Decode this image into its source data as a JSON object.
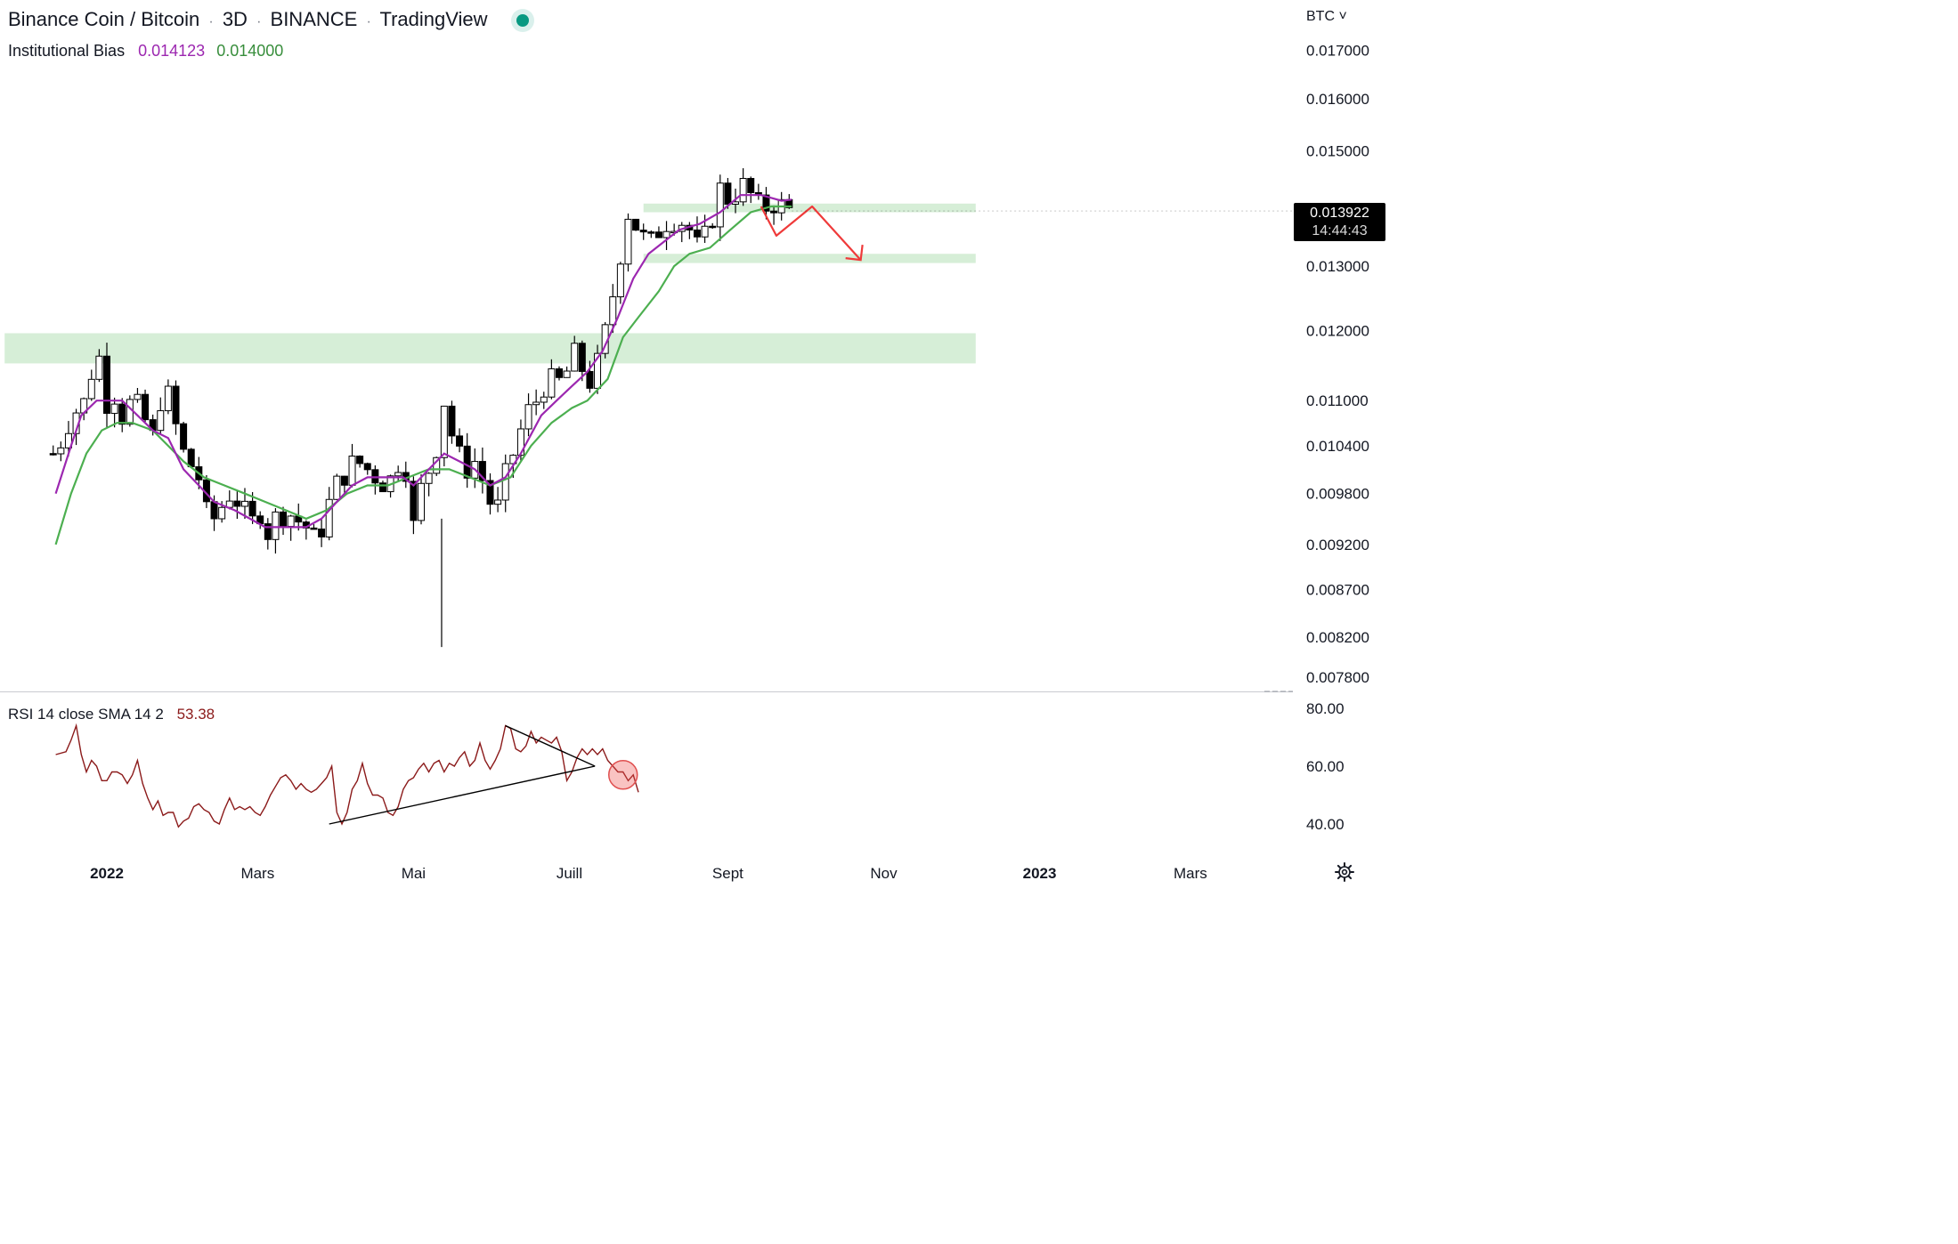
{
  "header": {
    "symbol": "Binance Coin / Bitcoin",
    "interval": "3D",
    "exchange": "BINANCE",
    "source": "TradingView",
    "status_icon": "live-dot-icon"
  },
  "indicator": {
    "name": "Institutional Bias",
    "value1": "0.014123",
    "value2": "0.014000",
    "color1": "#9c27b0",
    "color2": "#4caf50"
  },
  "rsi": {
    "label": "RSI 14 close SMA 14 2",
    "value": "53.38",
    "color": "#8b1a1a"
  },
  "currency": "BTC ˅",
  "last_price": {
    "price": "0.013922",
    "countdown": "14:44:43"
  },
  "settings_icon": "gear-icon",
  "colors": {
    "candle": "#000000",
    "zone": "#d6eed7",
    "arrow": "#ef3a3a",
    "rsi_line": "#8b1a1a",
    "trendline": "#000000"
  },
  "chart_data": [
    {
      "type": "candlestick",
      "scale": "log",
      "y_ticks": [
        "0.017000",
        "0.016000",
        "0.015000",
        "0.013000",
        "0.012000",
        "0.011000",
        "0.010400",
        "0.009800",
        "0.009200",
        "0.008700",
        "0.008200",
        "0.007800"
      ],
      "x_ticks": [
        "2022",
        "Mars",
        "Mai",
        "Juill",
        "Sept",
        "Nov",
        "2023",
        "Mars"
      ],
      "x_tick_day": [
        0,
        59,
        120,
        181,
        243,
        304,
        365,
        424
      ],
      "close_path": [
        [
          -20,
          0.0103
        ],
        [
          -14,
          0.0108
        ],
        [
          -8,
          0.011
        ],
        [
          -4,
          0.0118
        ],
        [
          0,
          0.011
        ],
        [
          2,
          0.0112
        ],
        [
          6,
          0.0108
        ],
        [
          10,
          0.011
        ],
        [
          14,
          0.0108
        ],
        [
          18,
          0.0105
        ],
        [
          22,
          0.0112
        ],
        [
          26,
          0.0109
        ],
        [
          28,
          0.0104
        ],
        [
          32,
          0.0102
        ],
        [
          36,
          0.01
        ],
        [
          40,
          0.0094
        ],
        [
          44,
          0.0096
        ],
        [
          48,
          0.0098
        ],
        [
          52,
          0.0097
        ],
        [
          56,
          0.0094
        ],
        [
          60,
          0.0096
        ],
        [
          62,
          0.0093
        ],
        [
          66,
          0.0095
        ],
        [
          70,
          0.0096
        ],
        [
          74,
          0.0095
        ],
        [
          78,
          0.0094
        ],
        [
          82,
          0.0092
        ],
        [
          86,
          0.0096
        ],
        [
          90,
          0.0099
        ],
        [
          94,
          0.0101
        ],
        [
          98,
          0.0102
        ],
        [
          102,
          0.0101
        ],
        [
          106,
          0.01
        ],
        [
          110,
          0.0099
        ],
        [
          114,
          0.0102
        ],
        [
          118,
          0.0101
        ],
        [
          120,
          0.0094
        ],
        [
          124,
          0.01
        ],
        [
          128,
          0.0102
        ],
        [
          132,
          0.011
        ],
        [
          136,
          0.0104
        ],
        [
          140,
          0.0101
        ],
        [
          144,
          0.0102
        ],
        [
          148,
          0.0099
        ],
        [
          152,
          0.0095
        ],
        [
          156,
          0.01
        ],
        [
          160,
          0.0104
        ],
        [
          164,
          0.0108
        ],
        [
          168,
          0.011
        ],
        [
          172,
          0.0113
        ],
        [
          176,
          0.0112
        ],
        [
          180,
          0.0114
        ],
        [
          184,
          0.0117
        ],
        [
          188,
          0.0112
        ],
        [
          192,
          0.0115
        ],
        [
          196,
          0.0121
        ],
        [
          200,
          0.013
        ],
        [
          204,
          0.0139
        ],
        [
          208,
          0.0136
        ],
        [
          212,
          0.0133
        ],
        [
          216,
          0.0136
        ],
        [
          220,
          0.0138
        ],
        [
          224,
          0.0138
        ],
        [
          228,
          0.0136
        ],
        [
          232,
          0.0132
        ],
        [
          236,
          0.0137
        ],
        [
          240,
          0.0143
        ],
        [
          244,
          0.0141
        ],
        [
          248,
          0.0144
        ],
        [
          252,
          0.0142
        ],
        [
          256,
          0.0139
        ],
        [
          260,
          0.0141
        ],
        [
          264,
          0.014
        ],
        [
          268,
          0.0139
        ]
      ],
      "institutional_bias_fast": [
        [
          -20,
          0.0098
        ],
        [
          -14,
          0.0104
        ],
        [
          -10,
          0.0108
        ],
        [
          -4,
          0.011
        ],
        [
          0,
          0.011
        ],
        [
          6,
          0.011
        ],
        [
          12,
          0.0108
        ],
        [
          18,
          0.0106
        ],
        [
          24,
          0.0105
        ],
        [
          30,
          0.0101
        ],
        [
          36,
          0.0099
        ],
        [
          42,
          0.0097
        ],
        [
          50,
          0.0096
        ],
        [
          56,
          0.0095
        ],
        [
          62,
          0.0094
        ],
        [
          70,
          0.0094
        ],
        [
          78,
          0.0094
        ],
        [
          84,
          0.0095
        ],
        [
          90,
          0.0097
        ],
        [
          96,
          0.0099
        ],
        [
          102,
          0.01
        ],
        [
          110,
          0.01
        ],
        [
          116,
          0.01
        ],
        [
          120,
          0.0099
        ],
        [
          126,
          0.0101
        ],
        [
          132,
          0.0103
        ],
        [
          138,
          0.0102
        ],
        [
          144,
          0.0101
        ],
        [
          150,
          0.0099
        ],
        [
          156,
          0.01
        ],
        [
          162,
          0.0103
        ],
        [
          170,
          0.0108
        ],
        [
          176,
          0.011
        ],
        [
          182,
          0.0112
        ],
        [
          188,
          0.0114
        ],
        [
          194,
          0.0117
        ],
        [
          200,
          0.0122
        ],
        [
          206,
          0.0128
        ],
        [
          212,
          0.0132
        ],
        [
          218,
          0.0134
        ],
        [
          224,
          0.0136
        ],
        [
          232,
          0.0137
        ],
        [
          240,
          0.0139
        ],
        [
          248,
          0.0142
        ],
        [
          256,
          0.0142
        ],
        [
          264,
          0.0141
        ],
        [
          268,
          0.01412
        ]
      ],
      "institutional_bias_slow": [
        [
          -20,
          0.0092
        ],
        [
          -14,
          0.0098
        ],
        [
          -8,
          0.0103
        ],
        [
          -2,
          0.0106
        ],
        [
          4,
          0.0107
        ],
        [
          10,
          0.0107
        ],
        [
          18,
          0.0106
        ],
        [
          24,
          0.0104
        ],
        [
          30,
          0.0102
        ],
        [
          38,
          0.01
        ],
        [
          46,
          0.0099
        ],
        [
          54,
          0.0098
        ],
        [
          62,
          0.0097
        ],
        [
          70,
          0.0096
        ],
        [
          78,
          0.0095
        ],
        [
          86,
          0.0096
        ],
        [
          94,
          0.0098
        ],
        [
          102,
          0.0099
        ],
        [
          110,
          0.0099
        ],
        [
          118,
          0.01
        ],
        [
          126,
          0.0101
        ],
        [
          134,
          0.0101
        ],
        [
          142,
          0.01
        ],
        [
          150,
          0.0099
        ],
        [
          158,
          0.01
        ],
        [
          166,
          0.0104
        ],
        [
          174,
          0.0107
        ],
        [
          182,
          0.0109
        ],
        [
          188,
          0.011
        ],
        [
          196,
          0.0113
        ],
        [
          202,
          0.0119
        ],
        [
          208,
          0.0122
        ],
        [
          216,
          0.0126
        ],
        [
          222,
          0.013
        ],
        [
          228,
          0.0132
        ],
        [
          236,
          0.0133
        ],
        [
          244,
          0.0136
        ],
        [
          252,
          0.0139
        ],
        [
          260,
          0.014
        ],
        [
          268,
          0.014
        ]
      ],
      "zones": [
        {
          "from_day": 210,
          "to_day": 340,
          "low": 0.0139,
          "high": 0.01405
        },
        {
          "from_day": 210,
          "to_day": 340,
          "low": 0.01305,
          "high": 0.0132
        },
        {
          "from_day": -40,
          "to_day": 340,
          "low": 0.01152,
          "high": 0.01196
        }
      ],
      "projection_arrow": [
        [
          256,
          0.014
        ],
        [
          262,
          0.0135
        ],
        [
          276,
          0.014
        ],
        [
          295,
          0.0131
        ]
      ],
      "last_price": 0.013922
    },
    {
      "type": "line",
      "series": [
        {
          "name": "RSI 14 close SMA 14 2",
          "values": [
            [
              -20,
              64
            ],
            [
              -16,
              65
            ],
            [
              -14,
              69
            ],
            [
              -12,
              74
            ],
            [
              -10,
              64
            ],
            [
              -8,
              58
            ],
            [
              -6,
              62
            ],
            [
              -4,
              60
            ],
            [
              -2,
              55
            ],
            [
              0,
              55
            ],
            [
              2,
              58
            ],
            [
              4,
              58
            ],
            [
              6,
              57
            ],
            [
              8,
              54
            ],
            [
              10,
              57
            ],
            [
              12,
              62
            ],
            [
              14,
              54
            ],
            [
              16,
              49
            ],
            [
              18,
              45
            ],
            [
              20,
              48
            ],
            [
              22,
              43
            ],
            [
              24,
              44
            ],
            [
              26,
              44
            ],
            [
              28,
              39
            ],
            [
              30,
              41
            ],
            [
              32,
              42
            ],
            [
              34,
              46
            ],
            [
              36,
              47
            ],
            [
              38,
              45
            ],
            [
              40,
              44
            ],
            [
              42,
              41
            ],
            [
              44,
              40
            ],
            [
              46,
              45
            ],
            [
              48,
              49
            ],
            [
              50,
              45
            ],
            [
              52,
              46
            ],
            [
              54,
              45
            ],
            [
              56,
              46
            ],
            [
              58,
              44
            ],
            [
              60,
              43
            ],
            [
              62,
              46
            ],
            [
              64,
              50
            ],
            [
              66,
              53
            ],
            [
              68,
              56
            ],
            [
              70,
              57
            ],
            [
              72,
              55
            ],
            [
              74,
              52
            ],
            [
              76,
              54
            ],
            [
              78,
              52
            ],
            [
              80,
              51
            ],
            [
              82,
              52
            ],
            [
              84,
              54
            ],
            [
              86,
              56
            ],
            [
              88,
              60
            ],
            [
              90,
              44
            ],
            [
              92,
              40
            ],
            [
              94,
              44
            ],
            [
              96,
              52
            ],
            [
              98,
              55
            ],
            [
              100,
              61
            ],
            [
              102,
              54
            ],
            [
              104,
              50
            ],
            [
              106,
              50
            ],
            [
              108,
              49
            ],
            [
              110,
              44
            ],
            [
              112,
              43
            ],
            [
              114,
              46
            ],
            [
              116,
              52
            ],
            [
              118,
              55
            ],
            [
              120,
              56
            ],
            [
              122,
              59
            ],
            [
              124,
              61
            ],
            [
              126,
              58
            ],
            [
              128,
              61
            ],
            [
              130,
              62
            ],
            [
              132,
              58
            ],
            [
              134,
              61
            ],
            [
              136,
              60
            ],
            [
              138,
              63
            ],
            [
              140,
              65
            ],
            [
              142,
              60
            ],
            [
              144,
              62
            ],
            [
              146,
              68
            ],
            [
              148,
              62
            ],
            [
              150,
              59
            ],
            [
              152,
              62
            ],
            [
              154,
              66
            ],
            [
              156,
              74
            ],
            [
              158,
              73
            ],
            [
              160,
              66
            ],
            [
              162,
              65
            ],
            [
              164,
              67
            ],
            [
              166,
              72
            ],
            [
              168,
              68
            ],
            [
              170,
              70
            ],
            [
              172,
              69
            ],
            [
              174,
              68
            ],
            [
              176,
              70
            ],
            [
              178,
              65
            ],
            [
              180,
              55
            ],
            [
              182,
              58
            ],
            [
              184,
              63
            ],
            [
              186,
              66
            ],
            [
              188,
              64
            ],
            [
              190,
              66
            ],
            [
              192,
              64
            ],
            [
              194,
              66
            ],
            [
              196,
              62
            ],
            [
              198,
              60
            ],
            [
              200,
              58
            ],
            [
              202,
              58
            ],
            [
              204,
              55
            ],
            [
              206,
              57
            ],
            [
              208,
              51
            ]
          ]
        }
      ],
      "y_ticks": [
        "80.00",
        "60.00",
        "40.00"
      ],
      "ylim": [
        40,
        80
      ],
      "trendlines": [
        [
          [
            87,
            40
          ],
          [
            191,
            60
          ]
        ],
        [
          [
            156,
            74
          ],
          [
            191,
            60
          ]
        ]
      ],
      "highlight": {
        "day": 202,
        "value": 57
      }
    }
  ]
}
